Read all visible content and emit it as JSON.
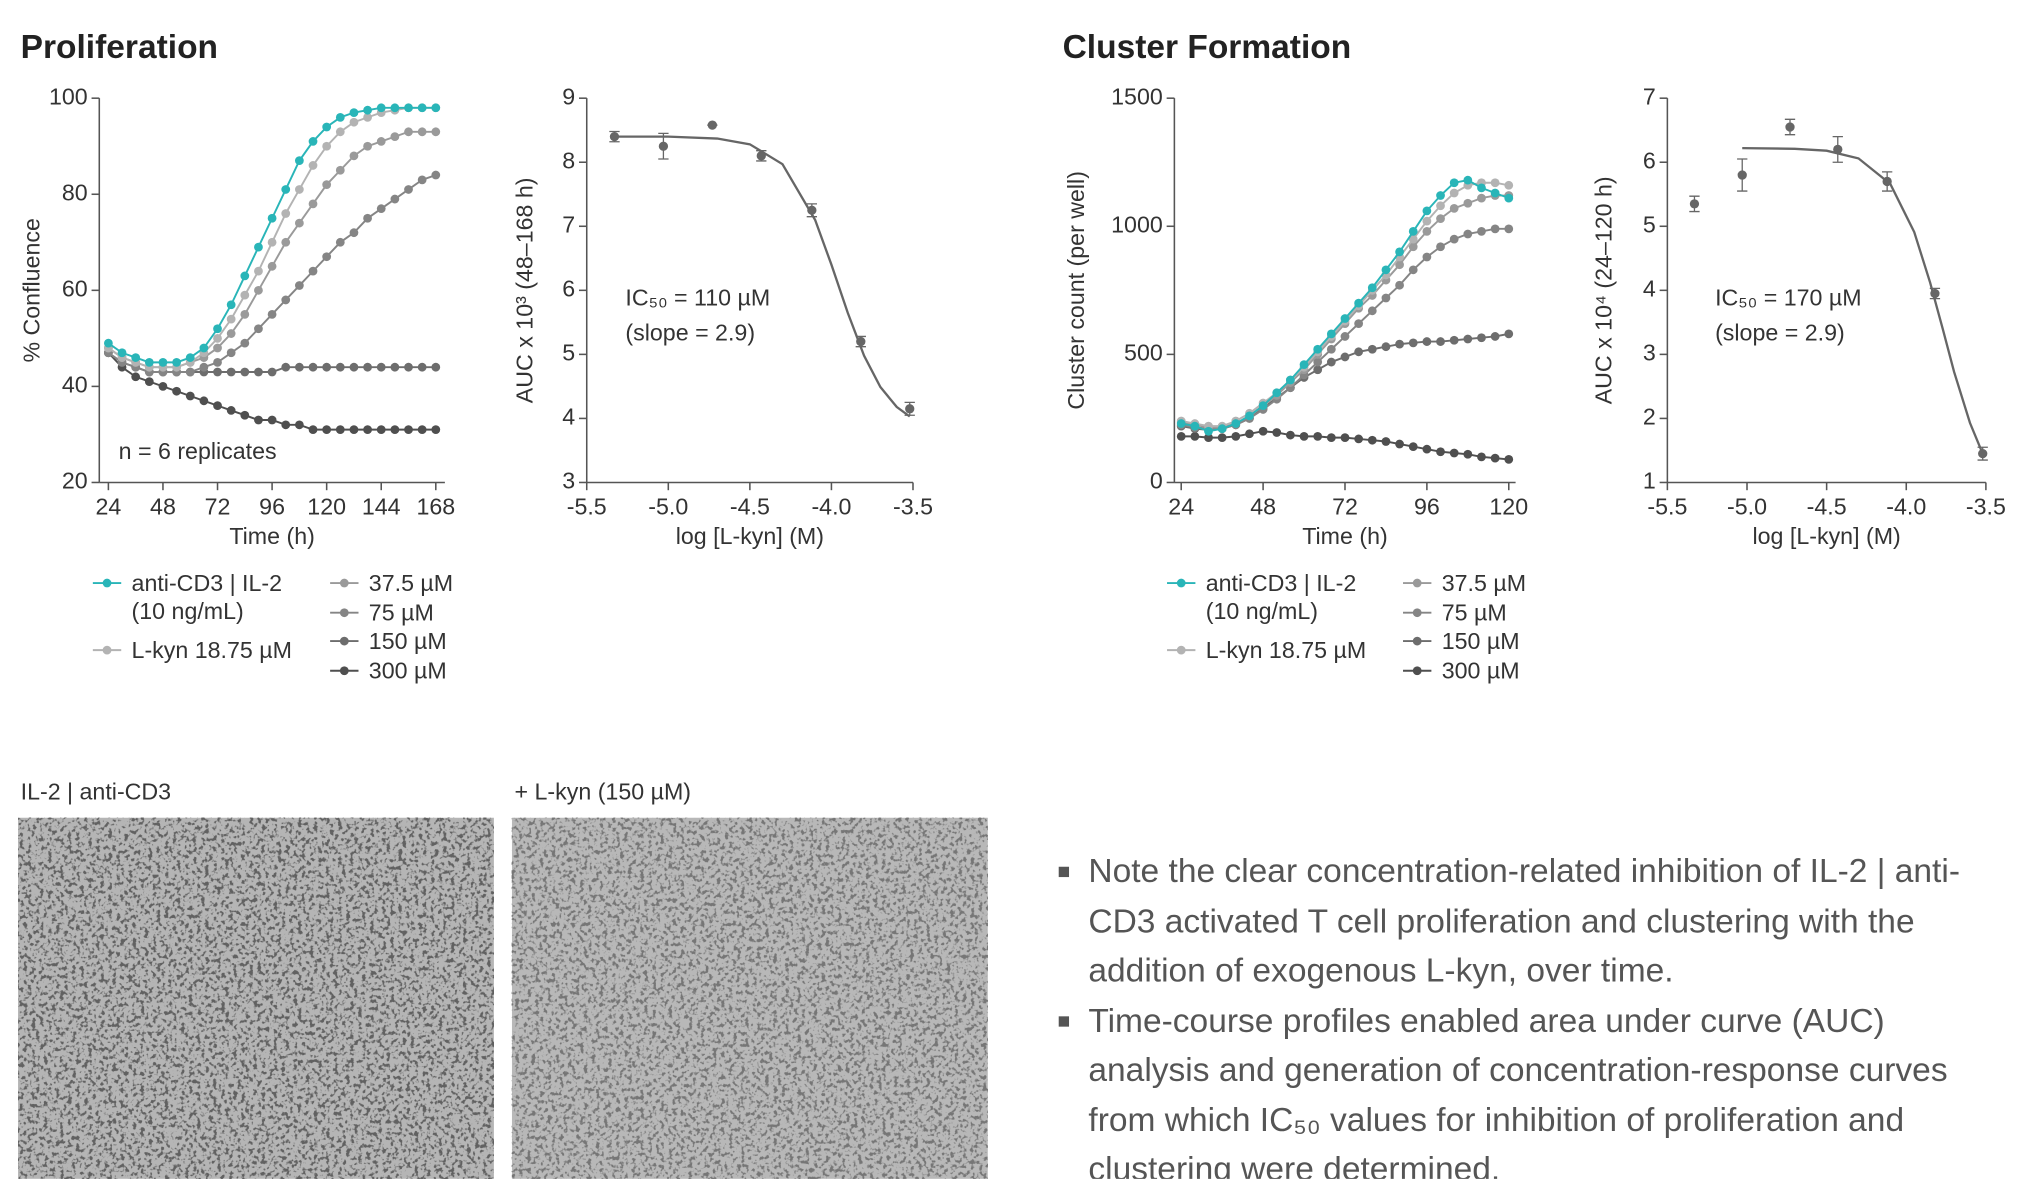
{
  "sections": [
    "Proliferation",
    "Cluster Formation"
  ],
  "images": [
    {
      "caption": "IL-2 | anti-CD3"
    },
    {
      "caption": "+ L-kyn (150 µM)"
    }
  ],
  "bullets": [
    "Note the clear concentration-related inhibition of IL-2 | anti-CD3 activated T cell proliferation and clustering with the addition of exogenous L-kyn, over time.",
    "Time-course profiles enabled area under curve (AUC) analysis and generation of concentration-response curves from which IC₅₀ values for inhibition of proliferation and clustering were determined."
  ],
  "chart_data": [
    {
      "type": "line",
      "x_label": "Time (h)",
      "y_label": "% Confluence",
      "annotations": [
        "n = 6 replicates"
      ],
      "x": [
        24,
        30,
        36,
        42,
        48,
        54,
        60,
        66,
        72,
        78,
        84,
        90,
        96,
        102,
        108,
        114,
        120,
        126,
        132,
        138,
        144,
        150,
        156,
        162,
        168
      ],
      "xlim": [
        20,
        172
      ],
      "xticks": [
        24,
        48,
        72,
        96,
        120,
        144,
        168
      ],
      "ylim": [
        20,
        100
      ],
      "yticks": [
        20,
        40,
        60,
        80,
        100
      ],
      "series": [
        {
          "name": "anti-CD3 | IL-2 (10 ng/mL)",
          "color": "#29b5b8",
          "values": [
            49,
            47,
            46,
            45,
            45,
            45,
            46,
            48,
            52,
            57,
            63,
            69,
            75,
            81,
            87,
            91,
            94,
            96,
            97,
            97.5,
            98,
            98,
            98,
            98,
            98
          ]
        },
        {
          "name": "L-kyn 18.75 µM",
          "color": "#b3b3b3",
          "values": [
            48,
            46,
            45,
            44,
            44,
            44,
            45,
            47,
            50,
            54,
            59,
            64,
            70,
            76,
            81,
            86,
            90,
            93,
            95,
            96,
            97,
            97.5,
            98,
            98,
            98
          ]
        },
        {
          "name": "37.5 µM",
          "color": "#9a9a9a",
          "values": [
            48,
            46,
            45,
            44,
            44,
            44,
            45,
            46,
            48,
            51,
            55,
            60,
            65,
            70,
            74,
            78,
            82,
            85,
            88,
            90,
            91,
            92,
            93,
            93,
            93
          ]
        },
        {
          "name": "75 µM",
          "color": "#858585",
          "values": [
            47,
            45,
            44,
            43,
            43,
            43,
            43,
            44,
            45,
            47,
            49,
            52,
            55,
            58,
            61,
            64,
            67,
            70,
            72,
            75,
            77,
            79,
            81,
            83,
            84
          ]
        },
        {
          "name": "150 µM",
          "color": "#6d6d6d",
          "values": [
            47,
            45,
            44,
            43,
            43,
            43,
            43,
            43,
            43,
            43,
            43,
            43,
            43,
            44,
            44,
            44,
            44,
            44,
            44,
            44,
            44,
            44,
            44,
            44,
            44
          ]
        },
        {
          "name": "300 µM",
          "color": "#4f4f4f",
          "values": [
            47,
            44,
            42,
            41,
            40,
            39,
            38,
            37,
            36,
            35,
            34,
            33,
            33,
            32,
            32,
            31,
            31,
            31,
            31,
            31,
            31,
            31,
            31,
            31,
            31
          ]
        }
      ]
    },
    {
      "type": "scatter",
      "x_label": "log [L-kyn] (M)",
      "y_label": "AUC x 10³ (48–168 h)",
      "annotations": [
        "IC₅₀ = 110 µM",
        "(slope = 2.9)"
      ],
      "color": "#666666",
      "x": [
        -5.33,
        -5.03,
        -4.73,
        -4.43,
        -4.12,
        -3.82,
        -3.52
      ],
      "values": [
        8.4,
        8.25,
        8.58,
        8.1,
        7.25,
        5.2,
        4.15
      ],
      "errors": [
        0.08,
        0.2,
        0,
        0.08,
        0.1,
        0.08,
        0.1
      ],
      "fit": {
        "x": [
          -5.33,
          -5.0,
          -4.7,
          -4.5,
          -4.3,
          -4.1,
          -4.0,
          -3.9,
          -3.8,
          -3.7,
          -3.6,
          -3.52
        ],
        "values": [
          8.4,
          8.4,
          8.37,
          8.28,
          7.97,
          7.1,
          6.4,
          5.65,
          4.98,
          4.49,
          4.18,
          4.03
        ]
      },
      "xlim": [
        -5.5,
        -3.5
      ],
      "xticks": [
        -5.5,
        {
          "value": -5,
          "label": "-5.0"
        },
        -4.5,
        {
          "value": -4,
          "label": "-4.0"
        },
        -3.5
      ],
      "ylim": [
        3,
        9
      ],
      "yticks": [
        3,
        4,
        5,
        6,
        7,
        8,
        9
      ]
    },
    {
      "type": "line",
      "x_label": "Time (h)",
      "y_label": "Cluster count (per well)",
      "x": [
        24,
        28,
        32,
        36,
        40,
        44,
        48,
        52,
        56,
        60,
        64,
        68,
        72,
        76,
        80,
        84,
        88,
        92,
        96,
        100,
        104,
        108,
        112,
        116,
        120
      ],
      "xlim": [
        22,
        122
      ],
      "xticks": [
        24,
        48,
        72,
        96,
        120
      ],
      "ylim": [
        0,
        1500
      ],
      "yticks": [
        0,
        500,
        1000,
        1500
      ],
      "series": [
        {
          "name": "anti-CD3 | IL-2 (10 ng/mL)",
          "color": "#29b5b8",
          "values": [
            230,
            220,
            200,
            210,
            230,
            260,
            300,
            350,
            400,
            460,
            520,
            580,
            640,
            700,
            760,
            830,
            900,
            980,
            1060,
            1120,
            1170,
            1180,
            1150,
            1130,
            1110
          ]
        },
        {
          "name": "L-kyn 18.75 µM",
          "color": "#b3b3b3",
          "values": [
            240,
            230,
            220,
            220,
            240,
            270,
            310,
            350,
            400,
            450,
            510,
            570,
            630,
            690,
            750,
            810,
            880,
            950,
            1020,
            1080,
            1130,
            1160,
            1170,
            1170,
            1160
          ]
        },
        {
          "name": "37.5 µM",
          "color": "#9a9a9a",
          "values": [
            235,
            225,
            215,
            215,
            230,
            260,
            300,
            340,
            390,
            440,
            500,
            560,
            620,
            680,
            730,
            790,
            850,
            920,
            980,
            1030,
            1070,
            1090,
            1110,
            1120,
            1120
          ]
        },
        {
          "name": "75 µM",
          "color": "#858585",
          "values": [
            225,
            215,
            210,
            210,
            225,
            250,
            285,
            325,
            370,
            420,
            470,
            520,
            570,
            620,
            670,
            720,
            770,
            830,
            880,
            920,
            950,
            970,
            980,
            990,
            990
          ]
        },
        {
          "name": "150 µM",
          "color": "#6d6d6d",
          "values": [
            220,
            210,
            205,
            210,
            225,
            250,
            290,
            330,
            370,
            410,
            440,
            470,
            490,
            510,
            520,
            530,
            540,
            545,
            550,
            550,
            555,
            560,
            565,
            570,
            580
          ]
        },
        {
          "name": "300 µM",
          "color": "#4f4f4f",
          "values": [
            180,
            180,
            175,
            175,
            180,
            190,
            200,
            195,
            185,
            180,
            180,
            175,
            175,
            170,
            165,
            160,
            150,
            140,
            130,
            120,
            115,
            110,
            100,
            95,
            90
          ]
        }
      ]
    },
    {
      "type": "scatter",
      "x_label": "log [L-kyn] (M)",
      "y_label": "AUC x 10⁴ (24–120 h)",
      "annotations": [
        "IC₅₀ = 170 µM",
        "(slope = 2.9)"
      ],
      "color": "#666666",
      "x": [
        -5.33,
        -5.03,
        -4.73,
        -4.43,
        -4.12,
        -3.82,
        -3.52
      ],
      "values": [
        5.35,
        5.8,
        6.55,
        6.2,
        5.7,
        3.95,
        1.45
      ],
      "errors": [
        0.12,
        0.25,
        0.12,
        0.2,
        0.15,
        0.08,
        0.1
      ],
      "fit": {
        "x": [
          -5.03,
          -4.7,
          -4.5,
          -4.3,
          -4.1,
          -3.95,
          -3.85,
          -3.77,
          -3.7,
          -3.6,
          -3.52
        ],
        "values": [
          6.22,
          6.21,
          6.18,
          6.06,
          5.66,
          4.91,
          4.12,
          3.39,
          2.73,
          1.93,
          1.45
        ]
      },
      "xlim": [
        -5.5,
        -3.5
      ],
      "xticks": [
        -5.5,
        {
          "value": -5,
          "label": "-5.0"
        },
        -4.5,
        {
          "value": -4,
          "label": "-4.0"
        },
        -3.5
      ],
      "ylim": [
        1,
        7
      ],
      "yticks": [
        1,
        2,
        3,
        4,
        5,
        6,
        7
      ]
    }
  ]
}
